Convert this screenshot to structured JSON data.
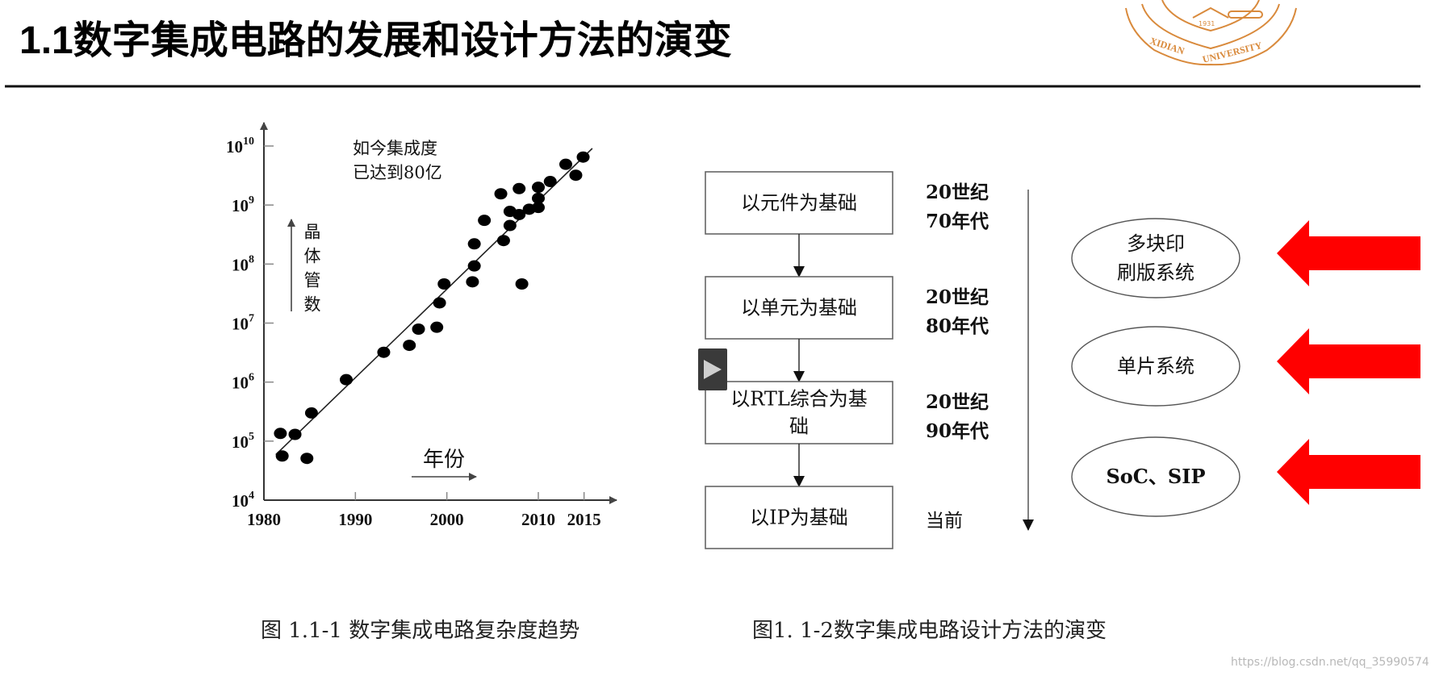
{
  "slide": {
    "title": "1.1数字集成电路的发展和设计方法的演变",
    "logo_text": "XIDIAN UNIVERSITY 1931",
    "watermark": "https://blog.csdn.net/qq_35990574"
  },
  "chart_data": {
    "type": "scatter",
    "title": "",
    "caption": "图 1.1-1 数字集成电路复杂度趋势",
    "xlabel": "年份",
    "ylabel": "晶体管数",
    "annotation": [
      "如今集成度",
      "已达到80亿"
    ],
    "y_scale": "log",
    "xlim": [
      1980,
      2016
    ],
    "ylim": [
      10000,
      10000000000
    ],
    "x_ticks": [
      "1980",
      "1990",
      "2000",
      "2010",
      "2015"
    ],
    "y_ticks": [
      {
        "base": "10",
        "exp": "4"
      },
      {
        "base": "10",
        "exp": "5"
      },
      {
        "base": "10",
        "exp": "6"
      },
      {
        "base": "10",
        "exp": "7"
      },
      {
        "base": "10",
        "exp": "8"
      },
      {
        "base": "10",
        "exp": "9"
      },
      {
        "base": "10",
        "exp": "10"
      }
    ],
    "grid": false,
    "points": [
      [
        1981.8,
        135000.0
      ],
      [
        1982.0,
        56000.0
      ],
      [
        1983.4,
        130000.0
      ],
      [
        1984.7,
        51000.0
      ],
      [
        1985.2,
        300000.0
      ],
      [
        1989.0,
        1100000.0
      ],
      [
        1993.1,
        3200000.0
      ],
      [
        1995.9,
        4200000.0
      ],
      [
        1996.9,
        7900000.0
      ],
      [
        1998.9,
        8500000.0
      ],
      [
        1999.2,
        22000000.0
      ],
      [
        1999.7,
        46000000.0
      ],
      [
        2002.8,
        50000000.0
      ],
      [
        2003.0,
        93000000.0
      ],
      [
        2003.0,
        220000000.0
      ],
      [
        2004.1,
        550000000.0
      ],
      [
        2005.9,
        1550000000.0
      ],
      [
        2006.2,
        250000000.0
      ],
      [
        2006.9,
        450000000.0
      ],
      [
        2006.9,
        780000000.0
      ],
      [
        2007.9,
        1900000000.0
      ],
      [
        2007.9,
        690000000.0
      ],
      [
        2008.2,
        46000000.0
      ],
      [
        2009.0,
        850000000.0
      ],
      [
        2010.0,
        2000000000.0
      ],
      [
        2010.0,
        1300000000.0
      ],
      [
        2010.0,
        910000000.0
      ],
      [
        2011.3,
        2500000000.0
      ],
      [
        2013.0,
        4900000000.0
      ],
      [
        2014.1,
        3200000000.0
      ],
      [
        2014.9,
        6500000000.0
      ]
    ],
    "trend_line": [
      [
        1981.3,
        59000.0
      ],
      [
        2015.9,
        9100000000.0
      ]
    ]
  },
  "flow": {
    "caption": "图1. 1-2数字集成电路设计方法的演变",
    "steps": [
      {
        "lines": [
          "以元件为基础"
        ],
        "era": [
          "20世纪",
          "70年代"
        ]
      },
      {
        "lines": [
          "以单元为基础"
        ],
        "era": [
          "20世纪",
          "80年代"
        ]
      },
      {
        "lines": [
          "以RTL综合为基",
          "础"
        ],
        "era": [
          "20世纪",
          "90年代"
        ]
      },
      {
        "lines": [
          "以IP为基础"
        ],
        "era": [
          "当前"
        ]
      }
    ],
    "systems": [
      {
        "lines": [
          "多块印",
          "刷版系统"
        ]
      },
      {
        "lines": [
          "单片系统"
        ]
      },
      {
        "lines": [
          "SoC、SIP"
        ]
      }
    ],
    "arrow_color": "#ff0000"
  },
  "player": {
    "play_icon": "play-icon"
  }
}
